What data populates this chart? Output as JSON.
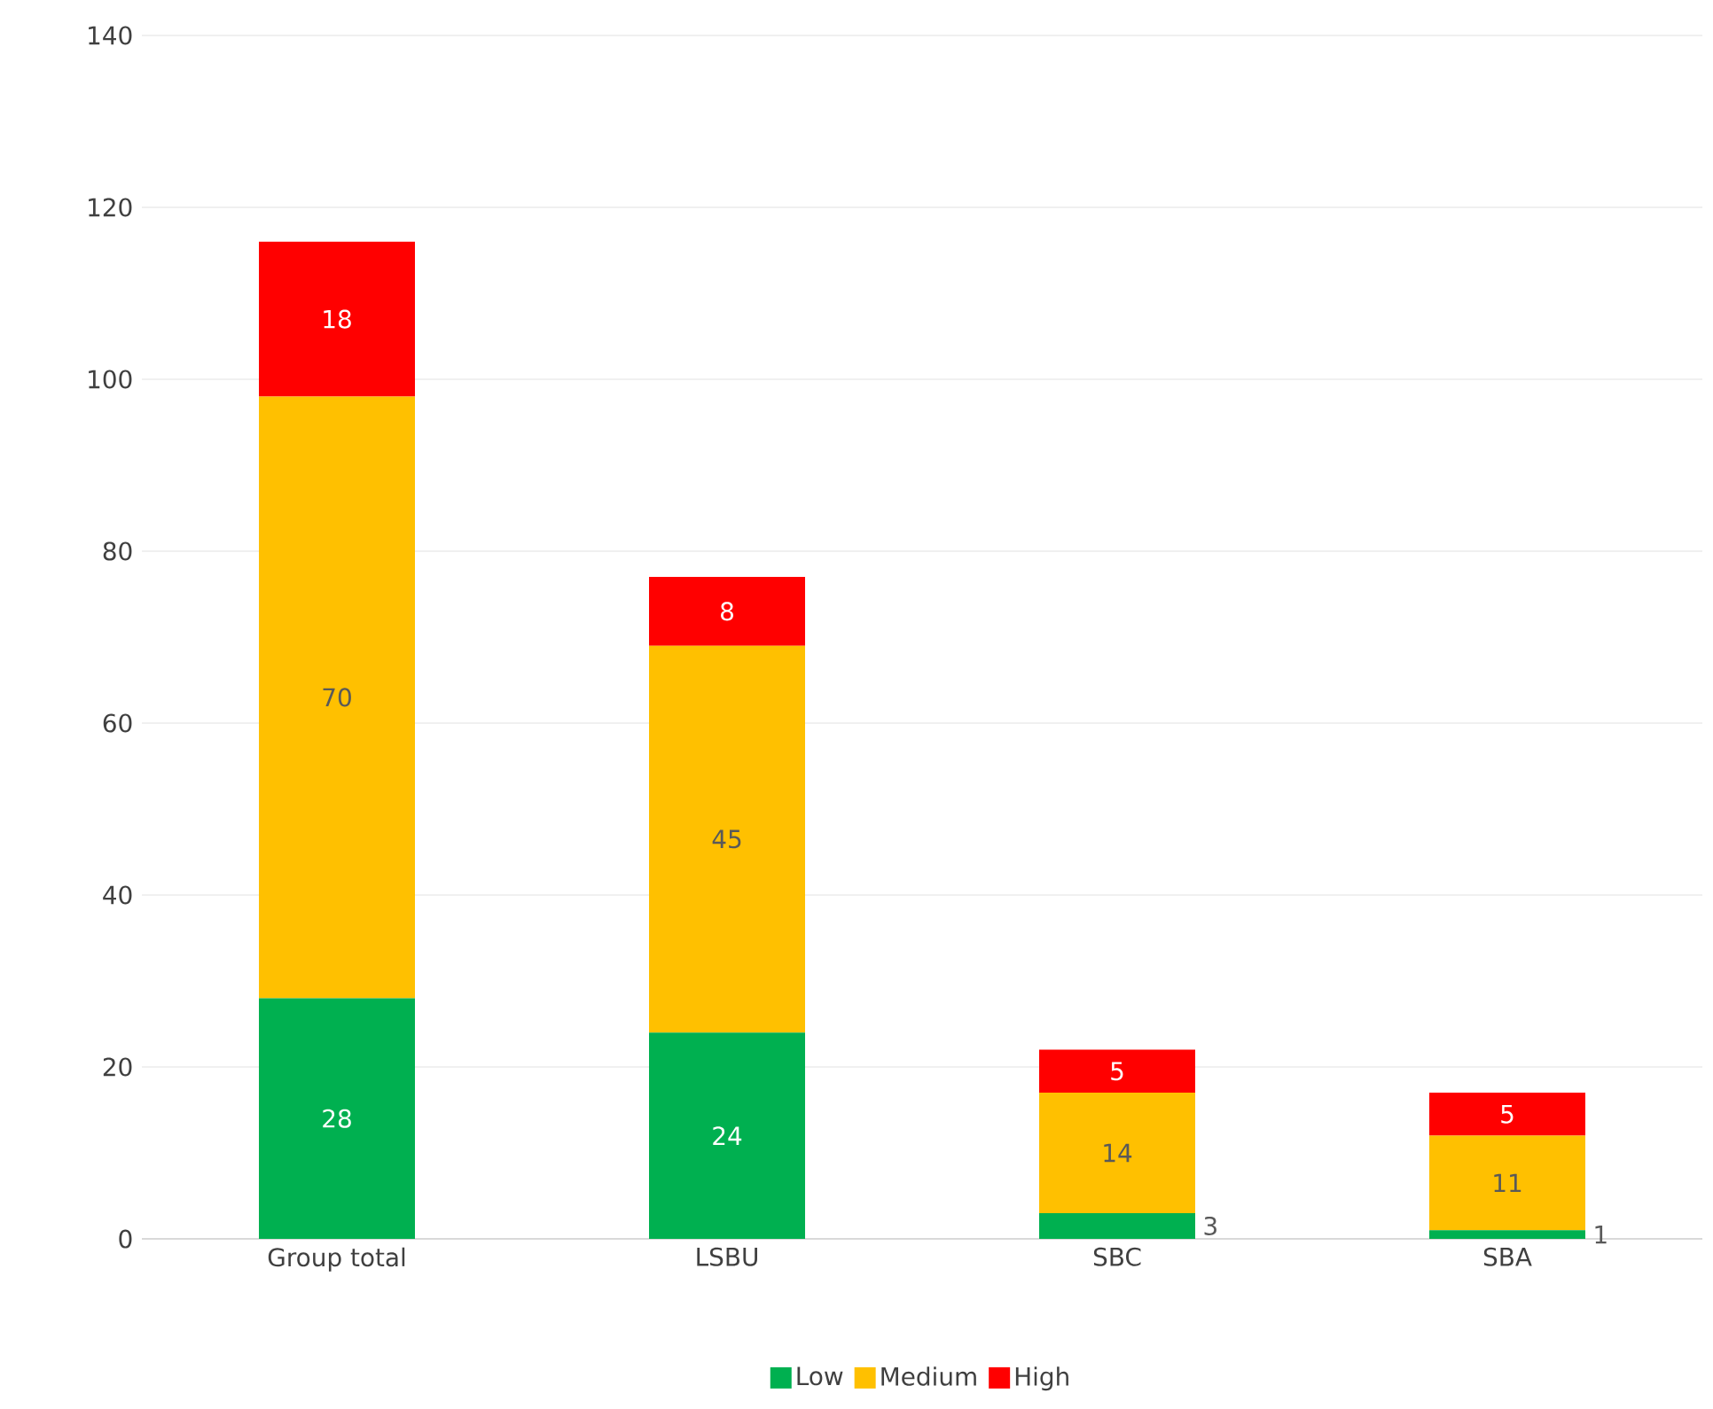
{
  "chart_data": {
    "type": "bar",
    "stacked": true,
    "categories": [
      "Group total",
      "LSBU",
      "SBC",
      "SBA"
    ],
    "series": [
      {
        "name": "Low",
        "color": "#00b050",
        "values": [
          28,
          24,
          3,
          1
        ]
      },
      {
        "name": "Medium",
        "color": "#ffc000",
        "values": [
          70,
          45,
          14,
          11
        ]
      },
      {
        "name": "High",
        "color": "#ff0000",
        "values": [
          18,
          8,
          5,
          5
        ]
      }
    ],
    "ylim": [
      0,
      140
    ],
    "yticks": [
      0,
      20,
      40,
      60,
      80,
      100,
      120,
      140
    ],
    "grid": "y",
    "legend": "bottom",
    "data_labels": true
  }
}
